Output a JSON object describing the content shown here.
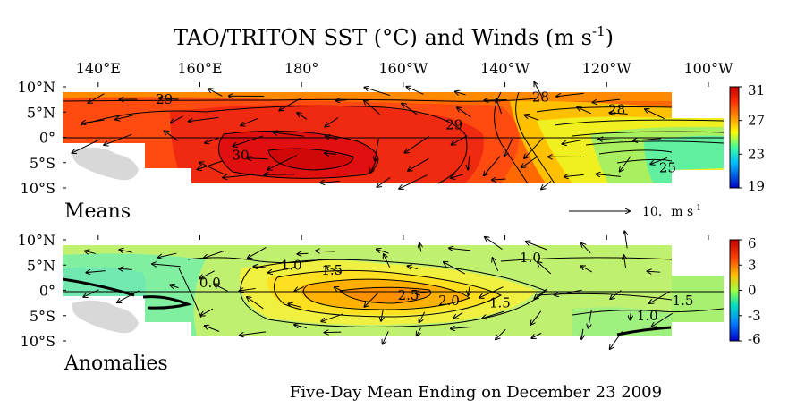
{
  "chart_data": {
    "type": "heatmap",
    "title": "TAO/TRITON SST (°C) and Winds (m s",
    "title_sup": "-1",
    "title_close": ")",
    "x_ticks": [
      "140°E",
      "160°E",
      "180°",
      "160°W",
      "140°W",
      "120°W",
      "100°W"
    ],
    "x_values_deg_east": [
      140,
      160,
      180,
      200,
      220,
      240,
      260
    ],
    "x_range_deg_east": [
      133,
      263
    ],
    "y_ticks": [
      "10°N",
      "5°N",
      "0°",
      "5°S",
      "10°S"
    ],
    "y_values": [
      10,
      5,
      0,
      -5,
      -10
    ],
    "y_range": [
      -10,
      10
    ],
    "footer": "Five-Day Mean Ending on December 23 2009",
    "panels": [
      {
        "name": "Means",
        "colorbar_ticks": [
          "31",
          "27",
          "23",
          "19"
        ],
        "colorbar_values": [
          31,
          27,
          23,
          19
        ],
        "colorbar_range": [
          19,
          31
        ],
        "contour_labels": [
          {
            "text": "29",
            "lon": 153,
            "lat": 7.5
          },
          {
            "text": "30",
            "lon": 168,
            "lat": -3.5
          },
          {
            "text": "29",
            "lon": 210,
            "lat": 2.5
          },
          {
            "text": "28",
            "lon": 227,
            "lat": 8
          },
          {
            "text": "28",
            "lon": 242,
            "lat": 5.5
          },
          {
            "text": "25",
            "lon": 252,
            "lat": -6
          }
        ],
        "wind_scale": {
          "value": "10.",
          "unit": "m s",
          "unit_sup": "-1"
        }
      },
      {
        "name": "Anomalies",
        "colorbar_ticks": [
          "6",
          "3",
          "0",
          "-3",
          "-6"
        ],
        "colorbar_values": [
          6,
          3,
          0,
          -3,
          -6
        ],
        "colorbar_range": [
          -6,
          6
        ],
        "contour_labels": [
          {
            "text": "0.0",
            "lon": 162,
            "lat": 1.5
          },
          {
            "text": "1.0",
            "lon": 178,
            "lat": 5
          },
          {
            "text": "1.5",
            "lon": 186,
            "lat": 4
          },
          {
            "text": "2.5",
            "lon": 201,
            "lat": -1
          },
          {
            "text": "2.0",
            "lon": 209,
            "lat": -2
          },
          {
            "text": "1.5",
            "lon": 219,
            "lat": -2.5
          },
          {
            "text": "1.0",
            "lon": 225,
            "lat": 6.5
          },
          {
            "text": "1.5",
            "lon": 255,
            "lat": -2
          },
          {
            "text": "1.0",
            "lon": 248,
            "lat": -5
          }
        ]
      }
    ]
  }
}
